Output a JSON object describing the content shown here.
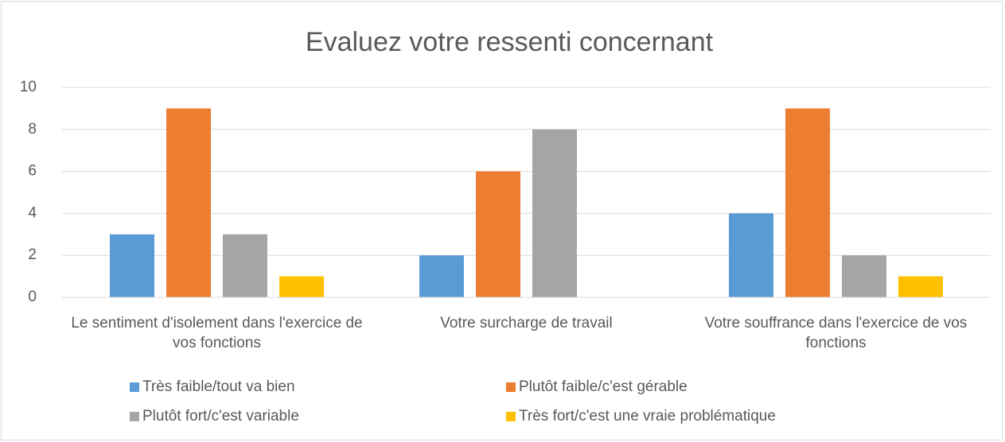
{
  "chart_data": {
    "type": "bar",
    "title": "Evaluez votre ressenti concernant",
    "categories": [
      "Le sentiment d'isolement dans l'exercice de vos fonctions",
      "Votre surcharge de travail",
      "Votre souffrance dans l'exercice de vos fonctions"
    ],
    "series": [
      {
        "name": "Très faible/tout va bien",
        "color": "#5b9bd5",
        "values": [
          3,
          2,
          4
        ]
      },
      {
        "name": "Plutôt faible/c'est gérable",
        "color": "#ed7d31",
        "values": [
          9,
          6,
          9
        ]
      },
      {
        "name": "Plutôt fort/c'est variable",
        "color": "#a5a5a5",
        "values": [
          3,
          8,
          2
        ]
      },
      {
        "name": "Très fort/c'est une vraie problématique",
        "color": "#ffc000",
        "values": [
          1,
          0,
          1
        ]
      }
    ],
    "ylim": [
      0,
      10
    ],
    "yticks": [
      0,
      2,
      4,
      6,
      8,
      10
    ],
    "grid": true,
    "legend": "bottom"
  }
}
